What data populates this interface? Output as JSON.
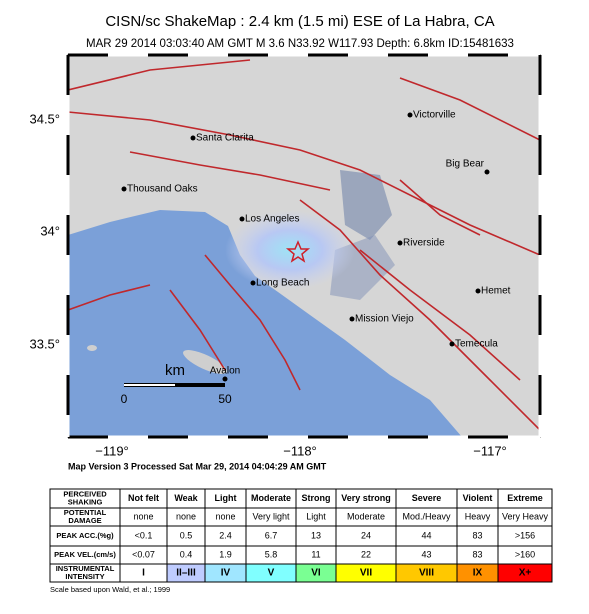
{
  "header": {
    "title": "CISN/sc ShakeMap : 2.4 km (1.5 mi) ESE of La Habra, CA",
    "subtitle": "MAR 29 2014 03:03:40 AM GMT   M 3.6   N33.92 W117.93   Depth: 6.8km   ID:15481633"
  },
  "map": {
    "lat_labels": [
      "34.5°",
      "34°",
      "33.5°"
    ],
    "lon_labels": [
      "−119°",
      "−118°",
      "−117°"
    ],
    "cities": [
      "Victorville",
      "Santa Clarita",
      "Big Bear",
      "Thousand Oaks",
      "Los Angeles",
      "Riverside",
      "Long Beach",
      "Hemet",
      "Mission Viejo",
      "Temecula",
      "Avalon"
    ],
    "scale": {
      "unit": "km",
      "start": "0",
      "end": "50"
    }
  },
  "processed": "Map Version 3 Processed Sat Mar 29, 2014 04:04:29 AM GMT",
  "table": {
    "rows": [
      [
        "PERCEIVED SHAKING",
        "Not felt",
        "Weak",
        "Light",
        "Moderate",
        "Strong",
        "Very strong",
        "Severe",
        "Violent",
        "Extreme"
      ],
      [
        "POTENTIAL DAMAGE",
        "none",
        "none",
        "none",
        "Very light",
        "Light",
        "Moderate",
        "Mod./Heavy",
        "Heavy",
        "Very Heavy"
      ],
      [
        "PEAK ACC.(%g)",
        "<0.1",
        "0.5",
        "2.4",
        "6.7",
        "13",
        "24",
        "44",
        "83",
        ">156"
      ],
      [
        "PEAK VEL.(cm/s)",
        "<0.07",
        "0.4",
        "1.9",
        "5.8",
        "11",
        "22",
        "43",
        "83",
        ">160"
      ],
      [
        "INSTRUMENTAL INTENSITY",
        "I",
        "II–III",
        "IV",
        "V",
        "VI",
        "VII",
        "VIII",
        "IX",
        "X+"
      ]
    ],
    "intensity_colors": [
      "#ffffff",
      "#bfccff",
      "#a0e6ff",
      "#80ffff",
      "#7aff93",
      "#ffff00",
      "#ffc800",
      "#ff9100",
      "#ff0000"
    ]
  },
  "footnote": "Scale based upon Wald, et al.; 1999"
}
